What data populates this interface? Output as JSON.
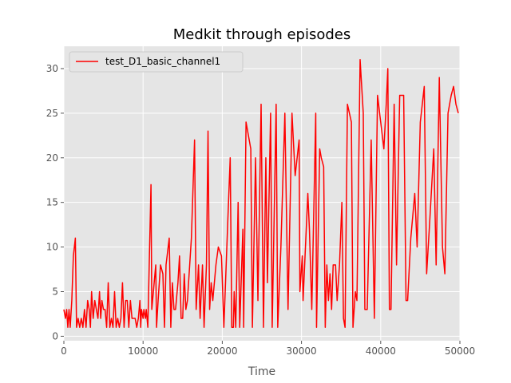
{
  "chart_data": {
    "type": "line",
    "title": "Medkit through episodes",
    "xlabel": "Time",
    "ylabel": "",
    "xlim": [
      0,
      50000
    ],
    "ylim": [
      -0.5,
      32.5
    ],
    "xticks": [
      0,
      10000,
      20000,
      30000,
      40000,
      50000
    ],
    "yticks": [
      0,
      5,
      10,
      15,
      20,
      25,
      30
    ],
    "xtick_labels": [
      "0",
      "10000",
      "20000",
      "30000",
      "40000",
      "50000"
    ],
    "ytick_labels": [
      "0",
      "5",
      "10",
      "15",
      "20",
      "25",
      "30"
    ],
    "grid": true,
    "legend_position": "top-left",
    "series": [
      {
        "name": "test_D1_basic_channel1",
        "color": "#ff0000",
        "points": [
          [
            0,
            3
          ],
          [
            200,
            2
          ],
          [
            350,
            3
          ],
          [
            500,
            1
          ],
          [
            650,
            3
          ],
          [
            800,
            1
          ],
          [
            1000,
            4
          ],
          [
            1200,
            9
          ],
          [
            1450,
            11
          ],
          [
            1600,
            1
          ],
          [
            1800,
            2
          ],
          [
            2000,
            1
          ],
          [
            2200,
            2
          ],
          [
            2400,
            1
          ],
          [
            2600,
            3
          ],
          [
            2800,
            1
          ],
          [
            3000,
            4
          ],
          [
            3200,
            3
          ],
          [
            3350,
            1
          ],
          [
            3500,
            5
          ],
          [
            3700,
            2
          ],
          [
            3900,
            4
          ],
          [
            4100,
            3
          ],
          [
            4300,
            2
          ],
          [
            4500,
            5
          ],
          [
            4650,
            2
          ],
          [
            4800,
            4
          ],
          [
            5000,
            3
          ],
          [
            5200,
            3
          ],
          [
            5400,
            1
          ],
          [
            5600,
            6
          ],
          [
            5800,
            1
          ],
          [
            6000,
            2
          ],
          [
            6200,
            1
          ],
          [
            6400,
            5
          ],
          [
            6600,
            1
          ],
          [
            6800,
            2
          ],
          [
            7000,
            1
          ],
          [
            7200,
            2
          ],
          [
            7400,
            6
          ],
          [
            7600,
            1
          ],
          [
            7800,
            4
          ],
          [
            8000,
            4
          ],
          [
            8200,
            1
          ],
          [
            8400,
            4
          ],
          [
            8600,
            2
          ],
          [
            8800,
            2
          ],
          [
            9000,
            2
          ],
          [
            9200,
            1
          ],
          [
            9400,
            2
          ],
          [
            9600,
            4
          ],
          [
            9700,
            1
          ],
          [
            9800,
            3
          ],
          [
            10000,
            2
          ],
          [
            10100,
            3
          ],
          [
            10300,
            2
          ],
          [
            10400,
            3
          ],
          [
            10600,
            1
          ],
          [
            10800,
            9
          ],
          [
            11000,
            17
          ],
          [
            11100,
            3
          ],
          [
            11300,
            5
          ],
          [
            11600,
            8
          ],
          [
            11700,
            1
          ],
          [
            11900,
            4
          ],
          [
            12200,
            8
          ],
          [
            12500,
            7
          ],
          [
            12700,
            1
          ],
          [
            12900,
            8
          ],
          [
            13300,
            11
          ],
          [
            13500,
            1
          ],
          [
            13700,
            6
          ],
          [
            13900,
            3
          ],
          [
            14100,
            3
          ],
          [
            14400,
            6
          ],
          [
            14600,
            9
          ],
          [
            14800,
            2
          ],
          [
            15000,
            2
          ],
          [
            15200,
            7
          ],
          [
            15400,
            3
          ],
          [
            15600,
            4
          ],
          [
            16100,
            11
          ],
          [
            16500,
            22
          ],
          [
            16700,
            3
          ],
          [
            17000,
            8
          ],
          [
            17200,
            2
          ],
          [
            17500,
            8
          ],
          [
            17700,
            1
          ],
          [
            18000,
            8
          ],
          [
            18200,
            23
          ],
          [
            18400,
            3
          ],
          [
            18600,
            6
          ],
          [
            18800,
            4
          ],
          [
            19200,
            8
          ],
          [
            19500,
            10
          ],
          [
            19900,
            9
          ],
          [
            20200,
            1
          ],
          [
            20700,
            13
          ],
          [
            21000,
            20
          ],
          [
            21200,
            1
          ],
          [
            21400,
            1
          ],
          [
            21500,
            5
          ],
          [
            21700,
            1
          ],
          [
            22000,
            15
          ],
          [
            22200,
            1
          ],
          [
            22600,
            12
          ],
          [
            22700,
            1
          ],
          [
            23000,
            24
          ],
          [
            23600,
            21
          ],
          [
            23800,
            1
          ],
          [
            24200,
            20
          ],
          [
            24500,
            4
          ],
          [
            24900,
            26
          ],
          [
            25200,
            1
          ],
          [
            25500,
            20
          ],
          [
            25700,
            6
          ],
          [
            26100,
            25
          ],
          [
            26300,
            1
          ],
          [
            26800,
            26
          ],
          [
            27000,
            1
          ],
          [
            27400,
            10
          ],
          [
            27900,
            25
          ],
          [
            28300,
            3
          ],
          [
            28800,
            25
          ],
          [
            29200,
            18
          ],
          [
            29700,
            22
          ],
          [
            29800,
            5
          ],
          [
            30100,
            9
          ],
          [
            30200,
            4
          ],
          [
            30800,
            16
          ],
          [
            31000,
            12
          ],
          [
            31300,
            3
          ],
          [
            31800,
            25
          ],
          [
            31900,
            1
          ],
          [
            32300,
            21
          ],
          [
            32500,
            20
          ],
          [
            32800,
            19
          ],
          [
            33000,
            1
          ],
          [
            33200,
            8
          ],
          [
            33400,
            4
          ],
          [
            33600,
            7
          ],
          [
            33800,
            3
          ],
          [
            34000,
            8
          ],
          [
            34300,
            8
          ],
          [
            34500,
            4
          ],
          [
            34800,
            8
          ],
          [
            35100,
            15
          ],
          [
            35300,
            2
          ],
          [
            35500,
            1
          ],
          [
            35800,
            26
          ],
          [
            36300,
            24
          ],
          [
            36500,
            1
          ],
          [
            36800,
            5
          ],
          [
            37000,
            4
          ],
          [
            37400,
            31
          ],
          [
            37800,
            25
          ],
          [
            38000,
            3
          ],
          [
            38300,
            3
          ],
          [
            38800,
            22
          ],
          [
            39200,
            2
          ],
          [
            39600,
            27
          ],
          [
            40000,
            24
          ],
          [
            40400,
            21
          ],
          [
            40700,
            26
          ],
          [
            40900,
            30
          ],
          [
            41100,
            3
          ],
          [
            41300,
            3
          ],
          [
            41700,
            26
          ],
          [
            42000,
            8
          ],
          [
            42400,
            27
          ],
          [
            42800,
            27
          ],
          [
            42900,
            27
          ],
          [
            43200,
            4
          ],
          [
            43400,
            4
          ],
          [
            43800,
            11
          ],
          [
            44300,
            16
          ],
          [
            44600,
            10
          ],
          [
            45000,
            24
          ],
          [
            45500,
            28
          ],
          [
            45800,
            7
          ],
          [
            46200,
            13
          ],
          [
            46700,
            21
          ],
          [
            47000,
            8
          ],
          [
            47400,
            29
          ],
          [
            47800,
            10
          ],
          [
            48100,
            7
          ],
          [
            48500,
            25
          ],
          [
            48900,
            27
          ],
          [
            49200,
            28
          ],
          [
            49500,
            26
          ],
          [
            49800,
            25
          ]
        ]
      }
    ]
  }
}
